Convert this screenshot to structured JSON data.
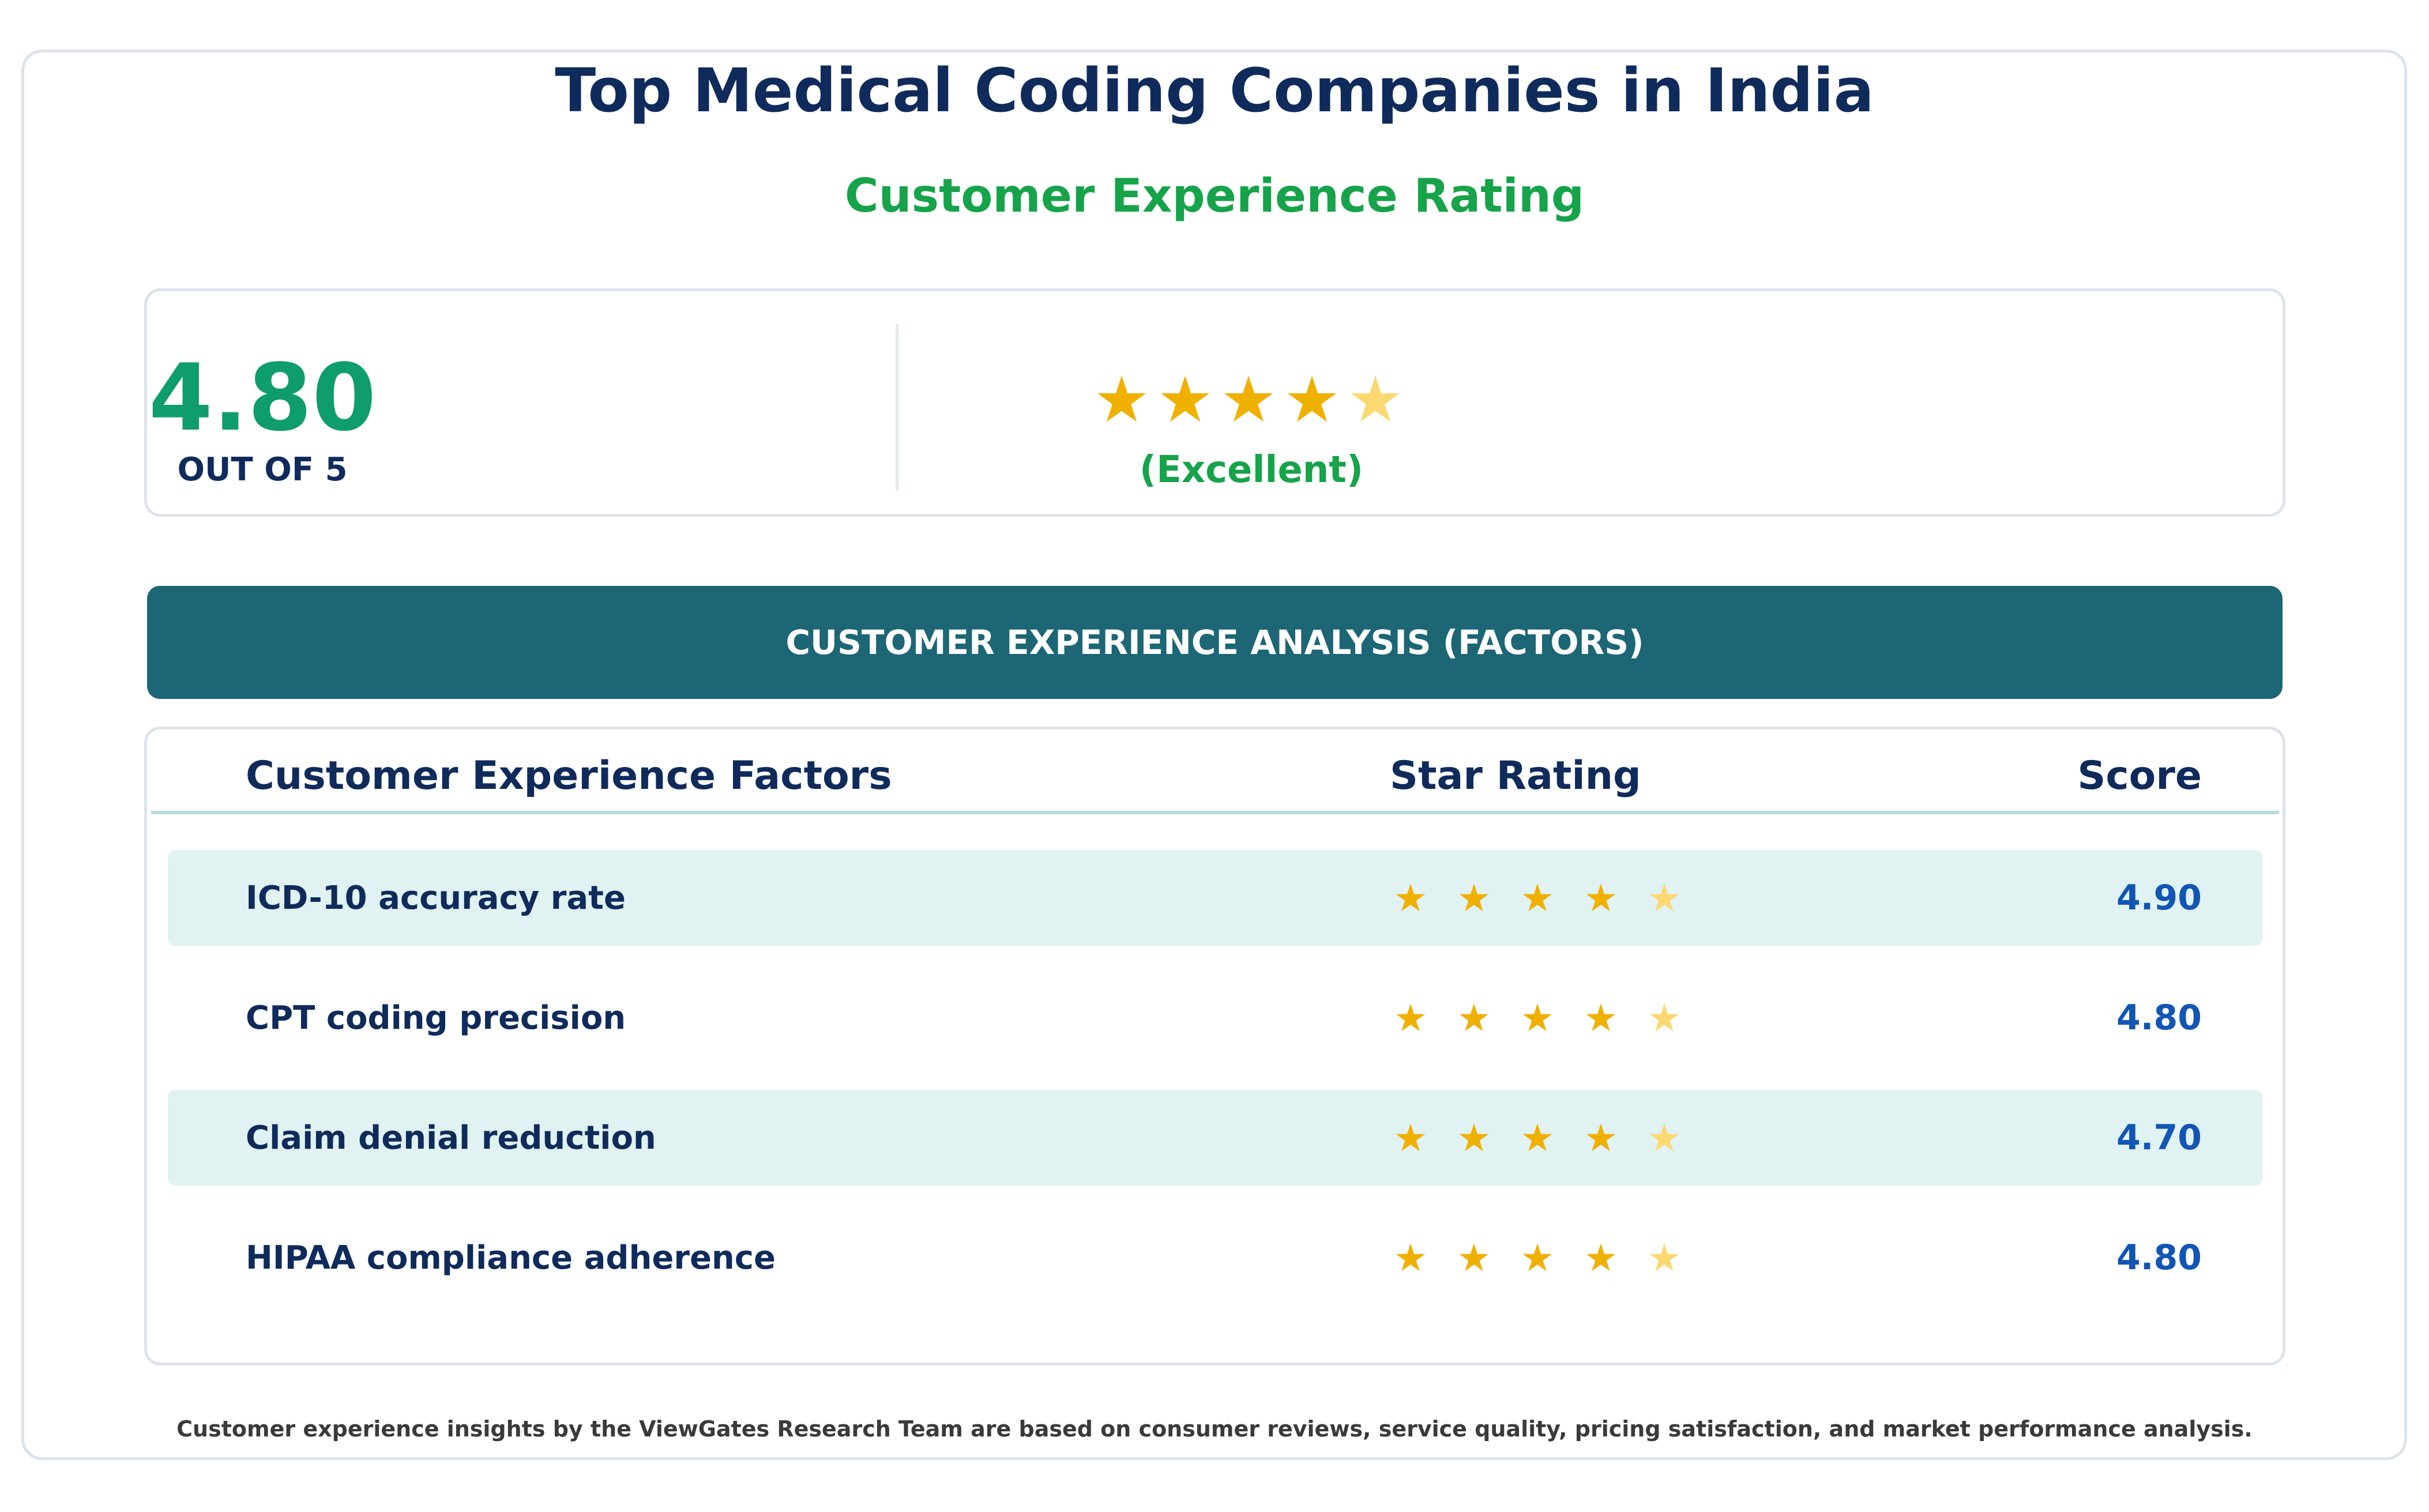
{
  "header": {
    "title": "Top Medical Coding Companies in India",
    "subtitle": "Customer Experience Rating"
  },
  "summary": {
    "score": "4.80",
    "out_of": "OUT OF 5",
    "stars_filled": 4,
    "stars_half": 1,
    "star_glyph": "★",
    "verdict": "(Excellent)"
  },
  "banner": {
    "label": "CUSTOMER EXPERIENCE ANALYSIS (FACTORS)"
  },
  "table": {
    "headers": {
      "factor": "Customer Experience Factors",
      "star": "Star Rating",
      "score": "Score"
    },
    "rows": [
      {
        "factor": "ICD-10 accuracy rate",
        "score": "4.90",
        "stars_filled": 4,
        "stars_half": 1
      },
      {
        "factor": "CPT coding precision",
        "score": "4.80",
        "stars_filled": 4,
        "stars_half": 1
      },
      {
        "factor": "Claim denial reduction",
        "score": "4.70",
        "stars_filled": 4,
        "stars_half": 1
      },
      {
        "factor": "HIPAA compliance adherence",
        "score": "4.80",
        "stars_filled": 4,
        "stars_half": 1
      }
    ]
  },
  "footnote": "Customer experience insights by the ViewGates Research Team are based on consumer reviews, service quality, pricing satisfaction, and market performance analysis.",
  "colors": {
    "navy": "#0f2b5c",
    "green": "#16a34a",
    "teal_banner": "#1c6675",
    "star_gold": "#f0b000",
    "star_light": "#fbd872",
    "score_blue": "#1155b5"
  }
}
